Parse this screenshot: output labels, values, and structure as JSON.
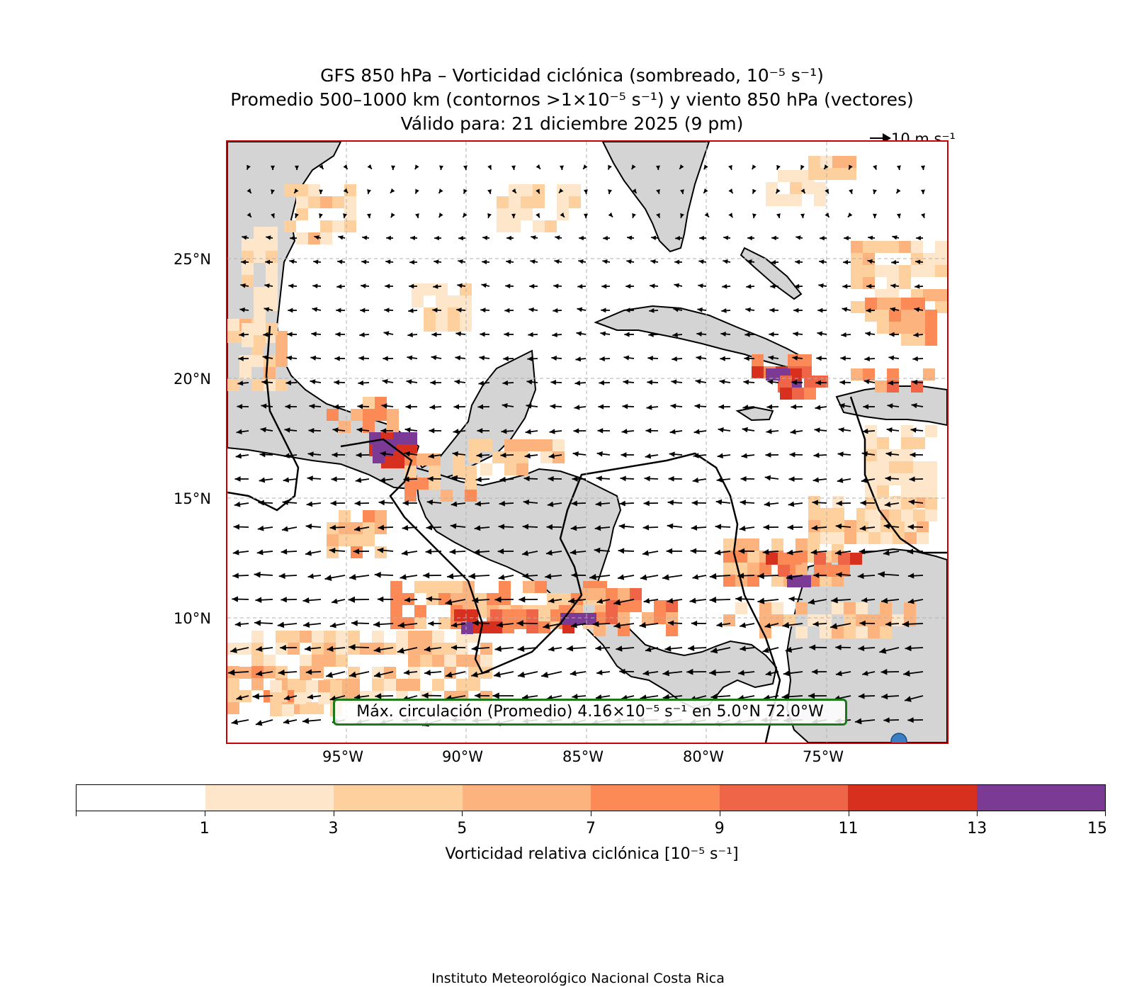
{
  "title": {
    "line1": "GFS 850 hPa – Vorticidad ciclónica (sombreado, 10⁻⁵ s⁻¹)",
    "line2": "Promedio 500–1000 km (contornos >1×10⁻⁵ s⁻¹) y viento 850 hPa (vectores)",
    "line3": "Válido para: 21 diciembre 2025 (9 pm)"
  },
  "reference_vector": "10 m s⁻¹",
  "axes": {
    "lat_labels": [
      "25°N",
      "20°N",
      "15°N",
      "10°N"
    ],
    "lon_labels": [
      "95°W",
      "90°W",
      "85°W",
      "80°W",
      "75°W"
    ]
  },
  "max_box_text": "Máx. circulación (Promedio) 4.16×10⁻⁵ s⁻¹ en 5.0°N 72.0°W",
  "colorbar": {
    "colors": [
      "#ffffff",
      "#fee6cb",
      "#fdd09d",
      "#fdb37d",
      "#fb8a56",
      "#ef6548",
      "#d7301f",
      "#7b3a94"
    ],
    "tick_labels": [
      "1",
      "3",
      "5",
      "7",
      "9",
      "11",
      "13",
      "15"
    ],
    "label": "Vorticidad relativa ciclónica [10⁻⁵ s⁻¹]"
  },
  "credit": "Instituto Meteorológico Nacional Costa Rica",
  "colors": {
    "land": "#d4d4d4",
    "frame": "#cc0000",
    "box_border": "#1a7a1a",
    "marker": "#3a7fc4"
  }
}
